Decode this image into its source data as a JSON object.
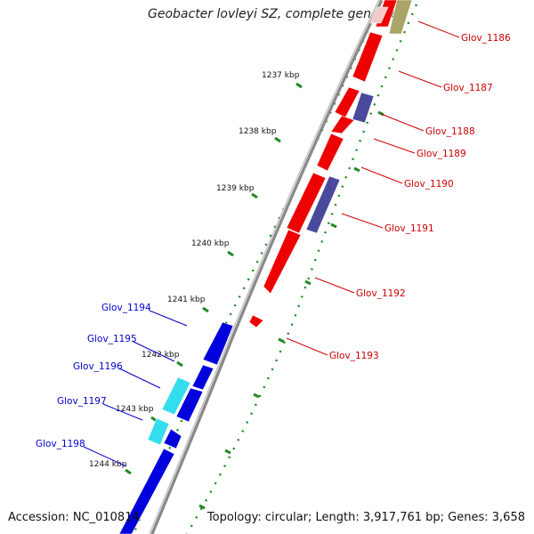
{
  "title": "Geobacter lovleyi SZ, complete genome",
  "accession": "Accession: NC_010814",
  "topology": "Topology: circular; Length: 3,917,761 bp; Genes: 3,658",
  "colors": {
    "forward": "#ee0000",
    "reverse": "#0000dd",
    "reverse_alt": "#33ddee",
    "forward_alt": "#4a4a9c",
    "pseudo": "#aaa466",
    "backbone": "#8a8a8a",
    "ticks": "#228822"
  },
  "kbp_ticks": [
    "1237 kbp",
    "1238 kbp",
    "1239 kbp",
    "1240 kbp",
    "1241 kbp",
    "1242 kbp",
    "1243 kbp",
    "1244 kbp"
  ],
  "genes_right": [
    {
      "label": "Glov_1186"
    },
    {
      "label": "Glov_1187"
    },
    {
      "label": "Glov_1188"
    },
    {
      "label": "Glov_1189"
    },
    {
      "label": "Glov_1190"
    },
    {
      "label": "Glov_1191"
    },
    {
      "label": "Glov_1192"
    },
    {
      "label": "Glov_1193"
    }
  ],
  "genes_left": [
    {
      "label": "Glov_1194"
    },
    {
      "label": "Glov_1195"
    },
    {
      "label": "Glov_1196"
    },
    {
      "label": "Glov_1197"
    },
    {
      "label": "Glov_1198"
    }
  ]
}
